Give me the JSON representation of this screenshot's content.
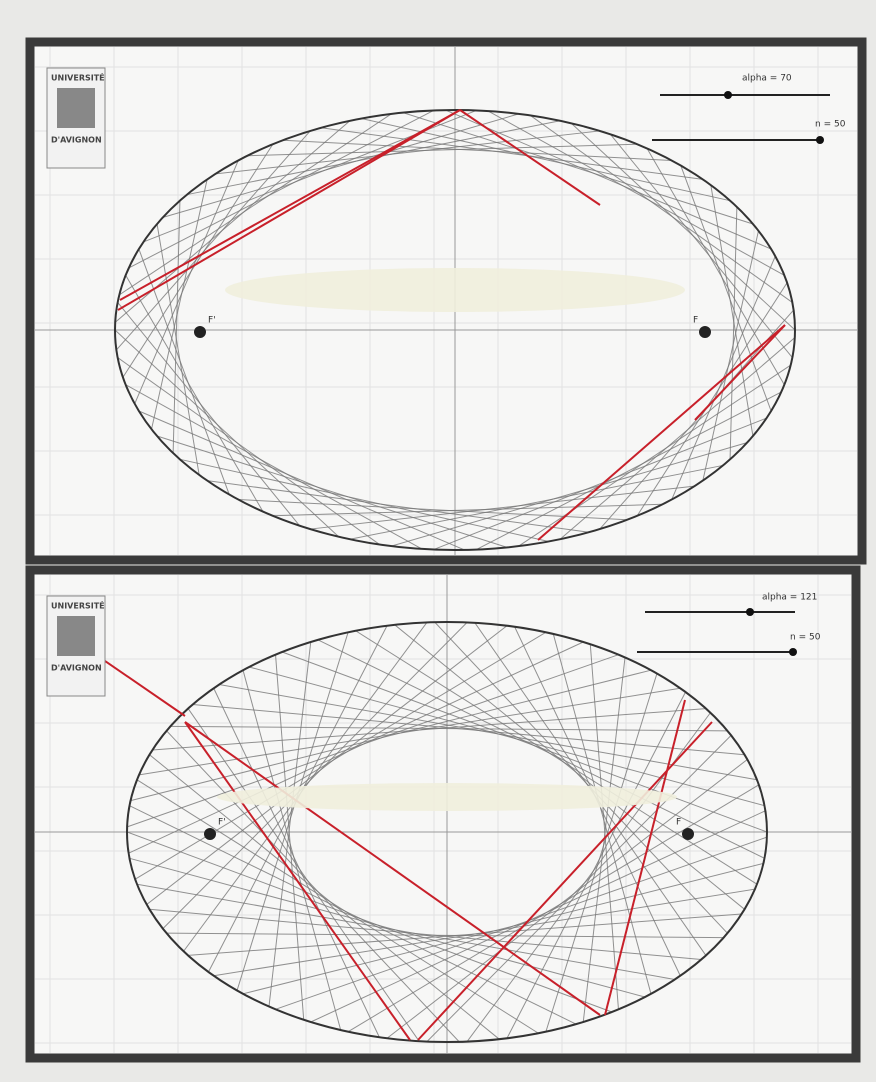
{
  "panels": [
    {
      "logo": {
        "line1": "UNIVERSITÉ",
        "line2": "D'AVIGNON"
      },
      "sliders": [
        "alpha = 70",
        "n = 50"
      ],
      "foci": [
        "F'",
        "F"
      ]
    },
    {
      "logo": {
        "line1": "UNIVERSITÉ",
        "line2": "D'AVIGNON"
      },
      "sliders": [
        "alpha = 121",
        "n = 50"
      ],
      "foci": [
        "F'",
        "F"
      ]
    }
  ]
}
